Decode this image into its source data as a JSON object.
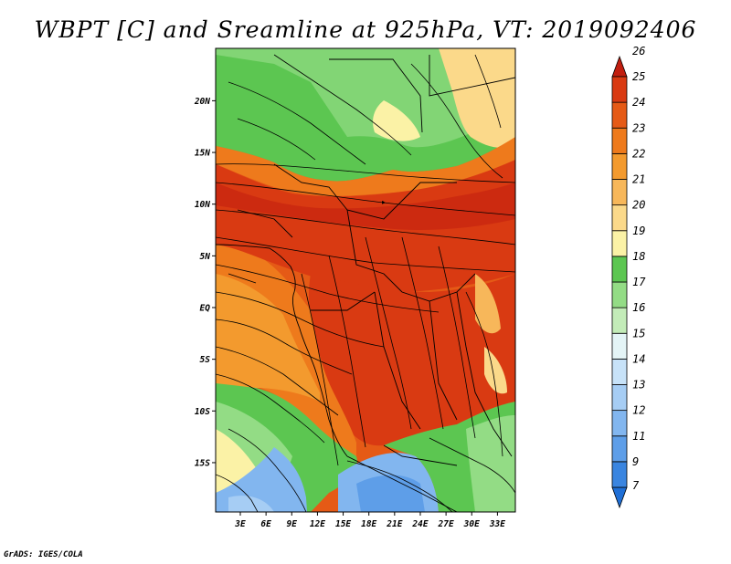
{
  "title": "WBPT [C] and Sreamline at 925hPa, VT: 2019092406",
  "credit": "GrADS: IGES/COLA",
  "lat_ticks": [
    {
      "label": "20N",
      "lat": 20
    },
    {
      "label": "15N",
      "lat": 15
    },
    {
      "label": "10N",
      "lat": 10
    },
    {
      "label": "5N",
      "lat": 5
    },
    {
      "label": "EQ",
      "lat": 0
    },
    {
      "label": "5S",
      "lat": -5
    },
    {
      "label": "10S",
      "lat": -10
    },
    {
      "label": "15S",
      "lat": -15
    }
  ],
  "lon_ticks": [
    {
      "label": "3E",
      "lon": 3
    },
    {
      "label": "6E",
      "lon": 6
    },
    {
      "label": "9E",
      "lon": 9
    },
    {
      "label": "12E",
      "lon": 12
    },
    {
      "label": "15E",
      "lon": 15
    },
    {
      "label": "18E",
      "lon": 18
    },
    {
      "label": "21E",
      "lon": 21
    },
    {
      "label": "24E",
      "lon": 24
    },
    {
      "label": "27E",
      "lon": 27
    },
    {
      "label": "30E",
      "lon": 30
    },
    {
      "label": "33E",
      "lon": 33
    }
  ],
  "colorbar": [
    {
      "label": "7",
      "color": "#1f6fd6"
    },
    {
      "label": "9",
      "color": "#3a85e0"
    },
    {
      "label": "11",
      "color": "#5e9ee8"
    },
    {
      "label": "12",
      "color": "#82b6ef"
    },
    {
      "label": "13",
      "color": "#a6cdf4"
    },
    {
      "label": "14",
      "color": "#c7e2f8"
    },
    {
      "label": "15",
      "color": "#e4f4f6"
    },
    {
      "label": "16",
      "color": "#c3ecb8"
    },
    {
      "label": "17",
      "color": "#93dc85"
    },
    {
      "label": "18",
      "color": "#5cc651"
    },
    {
      "label": "19",
      "color": "#fbf2a6"
    },
    {
      "label": "20",
      "color": "#fbd98a"
    },
    {
      "label": "21",
      "color": "#f7b75a"
    },
    {
      "label": "22",
      "color": "#f39a2e"
    },
    {
      "label": "23",
      "color": "#ee7a1c"
    },
    {
      "label": "24",
      "color": "#e55a16"
    },
    {
      "label": "25",
      "color": "#d93a12"
    },
    {
      "label": "26",
      "color": "#c11e0f"
    }
  ]
}
